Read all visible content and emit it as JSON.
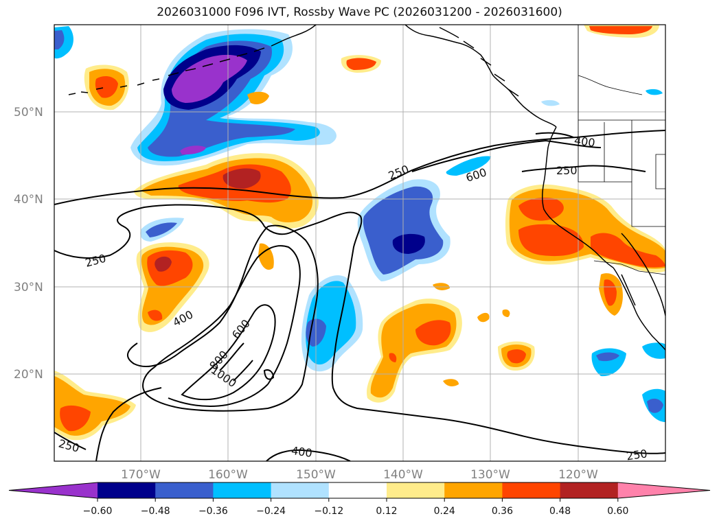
{
  "title": "2026031000 F096 IVT, Rossby Wave PC (2026031200 - 2026031600)",
  "lat_labels": [
    "50°N",
    "40°N",
    "30°N",
    "20°N"
  ],
  "lon_labels": [
    "170°W",
    "160°W",
    "150°W",
    "140°W",
    "130°W",
    "120°W"
  ],
  "contour_labels": [
    "250",
    "250",
    "250",
    "250",
    "250",
    "400",
    "400",
    "400",
    "600",
    "600",
    "800",
    "1000"
  ],
  "colorbar": {
    "colors": [
      "#9932cc",
      "#00008b",
      "#3a5fcd",
      "#00bfff",
      "#b0e2ff",
      "#ffffff",
      "#ffec8b",
      "#ffa500",
      "#ff4500",
      "#b22222",
      "#ff82ab"
    ],
    "tick_labels": [
      "−0.60",
      "−0.48",
      "−0.36",
      "−0.24",
      "−0.12",
      "0.12",
      "0.24",
      "0.36",
      "0.48",
      "0.60"
    ]
  }
}
